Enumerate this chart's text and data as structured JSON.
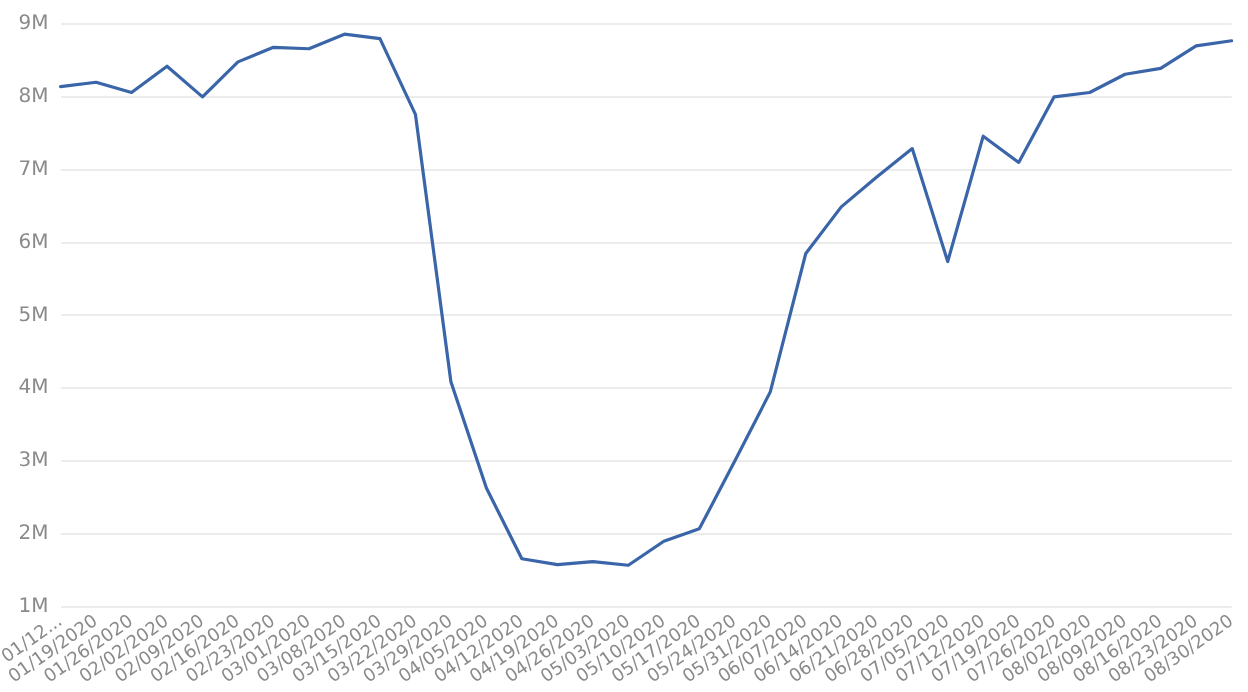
{
  "chart_data": {
    "type": "line",
    "categories": [
      "01/12...",
      "01/19/2020",
      "01/26/2020",
      "02/02/2020",
      "02/09/2020",
      "02/16/2020",
      "02/23/2020",
      "03/01/2020",
      "03/08/2020",
      "03/15/2020",
      "03/22/2020",
      "03/29/2020",
      "04/05/2020",
      "04/12/2020",
      "04/19/2020",
      "04/26/2020",
      "05/03/2020",
      "05/10/2020",
      "05/17/2020",
      "05/24/2020",
      "05/31/2020",
      "06/07/2020",
      "06/14/2020",
      "06/21/2020",
      "06/28/2020",
      "07/05/2020",
      "07/12/2020",
      "07/19/2020",
      "07/26/2020",
      "08/02/2020",
      "08/09/2020",
      "08/16/2020",
      "08/23/2020",
      "08/30/2020"
    ],
    "series": [
      {
        "color": "#3a65a8",
        "values": [
          8140000,
          8200000,
          8060000,
          8420000,
          8000000,
          8480000,
          8680000,
          8660000,
          8860000,
          8800000,
          7760000,
          4090000,
          2630000,
          1660000,
          1580000,
          1620000,
          1570000,
          1900000,
          2070000,
          3000000,
          3950000,
          5850000,
          6490000,
          6900000,
          7290000,
          5740000,
          7460000,
          7100000,
          8000000,
          8060000,
          8310000,
          8390000,
          8700000,
          8770000
        ]
      }
    ],
    "ylim": [
      1000000,
      9000000
    ],
    "yticks": [
      {
        "value": 1000000,
        "label": "1M"
      },
      {
        "value": 2000000,
        "label": "2M"
      },
      {
        "value": 3000000,
        "label": "3M"
      },
      {
        "value": 4000000,
        "label": "4M"
      },
      {
        "value": 5000000,
        "label": "5M"
      },
      {
        "value": 6000000,
        "label": "6M"
      },
      {
        "value": 7000000,
        "label": "7M"
      },
      {
        "value": 8000000,
        "label": "8M"
      },
      {
        "value": 9000000,
        "label": "9M"
      }
    ],
    "grid": "y",
    "legend": false,
    "marker": "none",
    "line_style": "solid"
  }
}
